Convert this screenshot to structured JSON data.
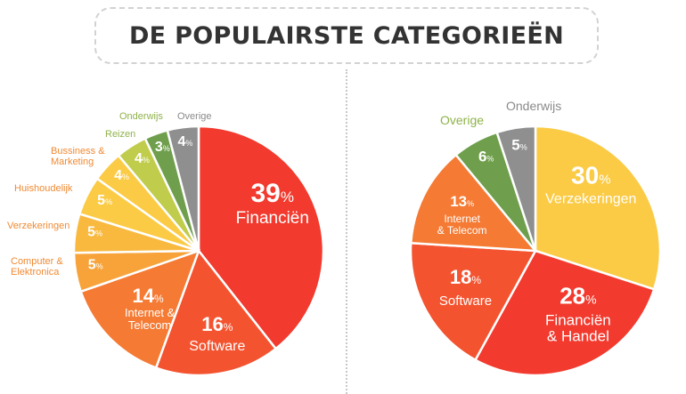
{
  "title": "DE POPULAIRSTE CATEGORIEËN",
  "colors": {
    "red": "#f23a2e",
    "red_orange": "#f4532f",
    "orange": "#f57a33",
    "orange_light": "#f7a33a",
    "amber": "#f9b93f",
    "yellow": "#fbcb45",
    "yellow_green": "#c0cc4b",
    "green": "#8cb648",
    "green_dark": "#6f9f4c",
    "grey": "#8f8f8f",
    "label_orange": "#f08a34",
    "label_green": "#8fb24a",
    "label_grey": "#8a8a8a"
  },
  "chart_data": [
    {
      "type": "pie",
      "title": "",
      "slices": [
        {
          "label": "Financiën",
          "value": 39,
          "pct": "39",
          "color": "#f23a2e",
          "placement": "inside"
        },
        {
          "label": "Software",
          "value": 16,
          "pct": "16",
          "color": "#f4532f",
          "placement": "inside"
        },
        {
          "label": "Internet & Telecom",
          "value": 14,
          "pct": "14",
          "color": "#f57a33",
          "placement": "inside"
        },
        {
          "label": "Computer & Elektronica",
          "value": 5,
          "pct": "5",
          "color": "#f7a33a",
          "placement": "outside"
        },
        {
          "label": "Verzekeringen",
          "value": 5,
          "pct": "5",
          "color": "#f9b93f",
          "placement": "outside"
        },
        {
          "label": "Huishoudelijk",
          "value": 5,
          "pct": "5",
          "color": "#fbcb45",
          "placement": "outside"
        },
        {
          "label": "Bussiness & Marketing",
          "value": 4,
          "pct": "4",
          "color": "#fbcb45",
          "placement": "outside"
        },
        {
          "label": "Reizen",
          "value": 4,
          "pct": "4",
          "color": "#c0cc4b",
          "placement": "outside"
        },
        {
          "label": "Onderwijs",
          "value": 3,
          "pct": "3",
          "color": "#6f9f4c",
          "placement": "outside"
        },
        {
          "label": "Overige",
          "value": 4,
          "pct": "4",
          "color": "#8f8f8f",
          "placement": "outside"
        }
      ],
      "unit": "%"
    },
    {
      "type": "pie",
      "title": "",
      "slices": [
        {
          "label": "Verzekeringen",
          "value": 30,
          "pct": "30",
          "color": "#fbcb45",
          "placement": "inside"
        },
        {
          "label": "Financiën & Handel",
          "value": 28,
          "pct": "28",
          "color": "#f23a2e",
          "placement": "inside"
        },
        {
          "label": "Software",
          "value": 18,
          "pct": "18",
          "color": "#f4532f",
          "placement": "inside"
        },
        {
          "label": "Internet & Telecom",
          "value": 13,
          "pct": "13",
          "color": "#f57a33",
          "placement": "inside"
        },
        {
          "label": "Overige",
          "value": 6,
          "pct": "6",
          "color": "#6f9f4c",
          "placement": "outside"
        },
        {
          "label": "Onderwijs",
          "value": 5,
          "pct": "5",
          "color": "#8f8f8f",
          "placement": "outside"
        }
      ],
      "unit": "%"
    }
  ]
}
